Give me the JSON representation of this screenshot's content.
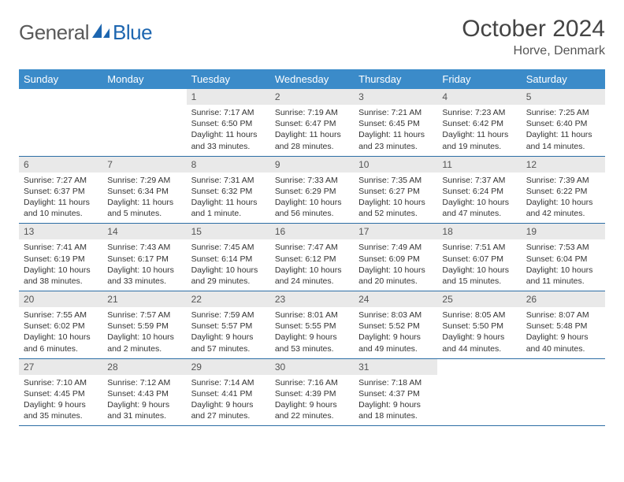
{
  "brand": {
    "part1": "General",
    "part2": "Blue"
  },
  "colors": {
    "header_bg": "#3b8bc9",
    "header_text": "#ffffff",
    "daynum_bg": "#e9e9e9",
    "border": "#2d6ea5",
    "logo_gray": "#5a5a5a",
    "logo_blue": "#1d66b0"
  },
  "title": "October 2024",
  "location": "Horve, Denmark",
  "day_headers": [
    "Sunday",
    "Monday",
    "Tuesday",
    "Wednesday",
    "Thursday",
    "Friday",
    "Saturday"
  ],
  "weeks": [
    [
      null,
      null,
      {
        "n": "1",
        "sr": "Sunrise: 7:17 AM",
        "ss": "Sunset: 6:50 PM",
        "dl": "Daylight: 11 hours and 33 minutes."
      },
      {
        "n": "2",
        "sr": "Sunrise: 7:19 AM",
        "ss": "Sunset: 6:47 PM",
        "dl": "Daylight: 11 hours and 28 minutes."
      },
      {
        "n": "3",
        "sr": "Sunrise: 7:21 AM",
        "ss": "Sunset: 6:45 PM",
        "dl": "Daylight: 11 hours and 23 minutes."
      },
      {
        "n": "4",
        "sr": "Sunrise: 7:23 AM",
        "ss": "Sunset: 6:42 PM",
        "dl": "Daylight: 11 hours and 19 minutes."
      },
      {
        "n": "5",
        "sr": "Sunrise: 7:25 AM",
        "ss": "Sunset: 6:40 PM",
        "dl": "Daylight: 11 hours and 14 minutes."
      }
    ],
    [
      {
        "n": "6",
        "sr": "Sunrise: 7:27 AM",
        "ss": "Sunset: 6:37 PM",
        "dl": "Daylight: 11 hours and 10 minutes."
      },
      {
        "n": "7",
        "sr": "Sunrise: 7:29 AM",
        "ss": "Sunset: 6:34 PM",
        "dl": "Daylight: 11 hours and 5 minutes."
      },
      {
        "n": "8",
        "sr": "Sunrise: 7:31 AM",
        "ss": "Sunset: 6:32 PM",
        "dl": "Daylight: 11 hours and 1 minute."
      },
      {
        "n": "9",
        "sr": "Sunrise: 7:33 AM",
        "ss": "Sunset: 6:29 PM",
        "dl": "Daylight: 10 hours and 56 minutes."
      },
      {
        "n": "10",
        "sr": "Sunrise: 7:35 AM",
        "ss": "Sunset: 6:27 PM",
        "dl": "Daylight: 10 hours and 52 minutes."
      },
      {
        "n": "11",
        "sr": "Sunrise: 7:37 AM",
        "ss": "Sunset: 6:24 PM",
        "dl": "Daylight: 10 hours and 47 minutes."
      },
      {
        "n": "12",
        "sr": "Sunrise: 7:39 AM",
        "ss": "Sunset: 6:22 PM",
        "dl": "Daylight: 10 hours and 42 minutes."
      }
    ],
    [
      {
        "n": "13",
        "sr": "Sunrise: 7:41 AM",
        "ss": "Sunset: 6:19 PM",
        "dl": "Daylight: 10 hours and 38 minutes."
      },
      {
        "n": "14",
        "sr": "Sunrise: 7:43 AM",
        "ss": "Sunset: 6:17 PM",
        "dl": "Daylight: 10 hours and 33 minutes."
      },
      {
        "n": "15",
        "sr": "Sunrise: 7:45 AM",
        "ss": "Sunset: 6:14 PM",
        "dl": "Daylight: 10 hours and 29 minutes."
      },
      {
        "n": "16",
        "sr": "Sunrise: 7:47 AM",
        "ss": "Sunset: 6:12 PM",
        "dl": "Daylight: 10 hours and 24 minutes."
      },
      {
        "n": "17",
        "sr": "Sunrise: 7:49 AM",
        "ss": "Sunset: 6:09 PM",
        "dl": "Daylight: 10 hours and 20 minutes."
      },
      {
        "n": "18",
        "sr": "Sunrise: 7:51 AM",
        "ss": "Sunset: 6:07 PM",
        "dl": "Daylight: 10 hours and 15 minutes."
      },
      {
        "n": "19",
        "sr": "Sunrise: 7:53 AM",
        "ss": "Sunset: 6:04 PM",
        "dl": "Daylight: 10 hours and 11 minutes."
      }
    ],
    [
      {
        "n": "20",
        "sr": "Sunrise: 7:55 AM",
        "ss": "Sunset: 6:02 PM",
        "dl": "Daylight: 10 hours and 6 minutes."
      },
      {
        "n": "21",
        "sr": "Sunrise: 7:57 AM",
        "ss": "Sunset: 5:59 PM",
        "dl": "Daylight: 10 hours and 2 minutes."
      },
      {
        "n": "22",
        "sr": "Sunrise: 7:59 AM",
        "ss": "Sunset: 5:57 PM",
        "dl": "Daylight: 9 hours and 57 minutes."
      },
      {
        "n": "23",
        "sr": "Sunrise: 8:01 AM",
        "ss": "Sunset: 5:55 PM",
        "dl": "Daylight: 9 hours and 53 minutes."
      },
      {
        "n": "24",
        "sr": "Sunrise: 8:03 AM",
        "ss": "Sunset: 5:52 PM",
        "dl": "Daylight: 9 hours and 49 minutes."
      },
      {
        "n": "25",
        "sr": "Sunrise: 8:05 AM",
        "ss": "Sunset: 5:50 PM",
        "dl": "Daylight: 9 hours and 44 minutes."
      },
      {
        "n": "26",
        "sr": "Sunrise: 8:07 AM",
        "ss": "Sunset: 5:48 PM",
        "dl": "Daylight: 9 hours and 40 minutes."
      }
    ],
    [
      {
        "n": "27",
        "sr": "Sunrise: 7:10 AM",
        "ss": "Sunset: 4:45 PM",
        "dl": "Daylight: 9 hours and 35 minutes."
      },
      {
        "n": "28",
        "sr": "Sunrise: 7:12 AM",
        "ss": "Sunset: 4:43 PM",
        "dl": "Daylight: 9 hours and 31 minutes."
      },
      {
        "n": "29",
        "sr": "Sunrise: 7:14 AM",
        "ss": "Sunset: 4:41 PM",
        "dl": "Daylight: 9 hours and 27 minutes."
      },
      {
        "n": "30",
        "sr": "Sunrise: 7:16 AM",
        "ss": "Sunset: 4:39 PM",
        "dl": "Daylight: 9 hours and 22 minutes."
      },
      {
        "n": "31",
        "sr": "Sunrise: 7:18 AM",
        "ss": "Sunset: 4:37 PM",
        "dl": "Daylight: 9 hours and 18 minutes."
      },
      null,
      null
    ]
  ]
}
